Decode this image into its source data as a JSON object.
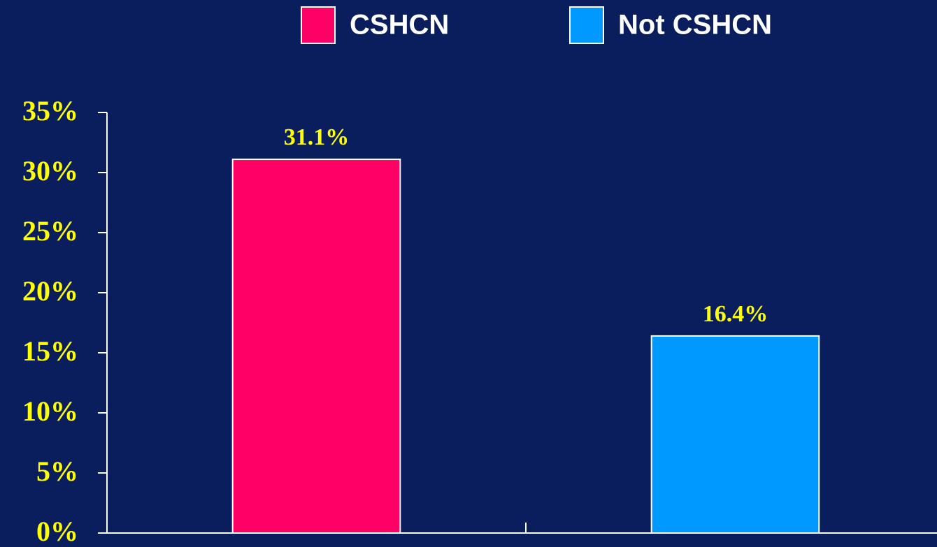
{
  "chart_data": {
    "type": "bar",
    "categories": [
      null,
      null
    ],
    "series": [
      {
        "name": "CSHCN",
        "color": "#ff0066",
        "values": [
          31.1,
          null
        ],
        "value_labels": [
          "31.1%",
          null
        ]
      },
      {
        "name": "Not CSHCN",
        "color": "#0099ff",
        "values": [
          null,
          16.4
        ],
        "value_labels": [
          null,
          "16.4%"
        ]
      }
    ],
    "ylim": [
      0,
      35
    ],
    "yticks": [
      {
        "value": 0,
        "label": "0%"
      },
      {
        "value": 5,
        "label": "5%"
      },
      {
        "value": 10,
        "label": "10%"
      },
      {
        "value": 15,
        "label": "15%"
      },
      {
        "value": 20,
        "label": "20%"
      },
      {
        "value": 25,
        "label": "25%"
      },
      {
        "value": 30,
        "label": "30%"
      },
      {
        "value": 35,
        "label": "35%"
      }
    ],
    "legend": "top"
  }
}
